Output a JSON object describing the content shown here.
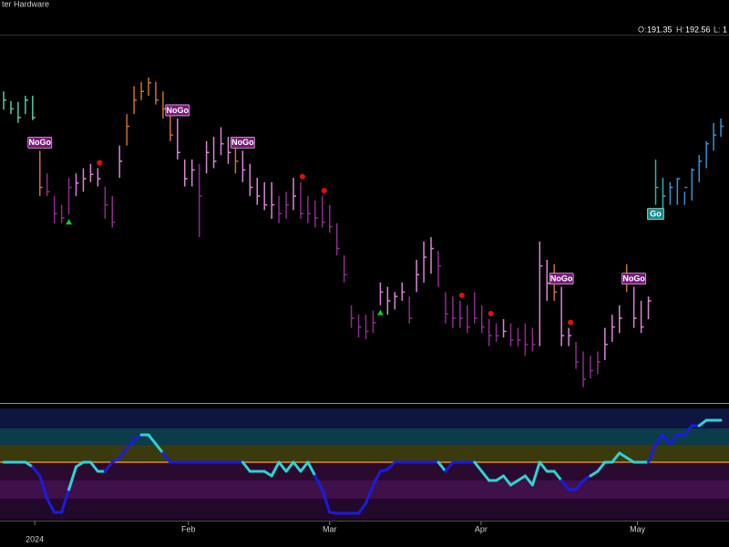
{
  "chart_data": {
    "type": "ohlc",
    "title": "ter Hardware",
    "header": {
      "open_label": "O:",
      "open": 191.35,
      "high_label": "H:",
      "high": 192.56,
      "low_label": "L:",
      "low": "1"
    },
    "ylim": [
      162.5,
      204.3
    ],
    "high": [
      198.0,
      196.9,
      196.8,
      197.5,
      197.5,
      191.2,
      188.6,
      186.0,
      185.0,
      188.1,
      188.6,
      189.2,
      189.7,
      189.2,
      187.1,
      186.0,
      191.8,
      195.4,
      198.6,
      199.1,
      199.6,
      199.1,
      198.0,
      196.5,
      194.9,
      190.2,
      190.2,
      189.7,
      192.3,
      192.8,
      193.9,
      192.8,
      192.3,
      191.2,
      189.7,
      188.1,
      187.6,
      187.6,
      186.0,
      186.5,
      188.1,
      187.6,
      186.0,
      185.5,
      186.0,
      185.0,
      182.9,
      179.2,
      173.5,
      172.4,
      172.4,
      172.9,
      176.1,
      175.6,
      175.0,
      176.1,
      174.5,
      178.7,
      180.8,
      181.3,
      179.7,
      175.0,
      174.5,
      174.0,
      173.5,
      175.0,
      173.5,
      171.9,
      171.4,
      171.9,
      171.4,
      170.9,
      171.4,
      170.9,
      180.8,
      178.7,
      178.2,
      175.6,
      170.9,
      169.3,
      168.2,
      167.7,
      168.2,
      170.9,
      172.4,
      173.5,
      178.2,
      175.6,
      174.0,
      174.5,
      190.2,
      188.1,
      187.6,
      188.1,
      186.5,
      189.2,
      190.7,
      192.3,
      194.4,
      194.9
    ],
    "low": [
      195.9,
      195.4,
      194.4,
      195.4,
      194.7,
      186.0,
      186.0,
      182.9,
      182.9,
      183.9,
      186.0,
      186.5,
      187.6,
      187.1,
      183.4,
      182.4,
      188.1,
      191.8,
      195.4,
      197.0,
      197.5,
      196.5,
      194.9,
      192.3,
      190.2,
      187.1,
      187.1,
      181.3,
      188.6,
      189.2,
      190.7,
      189.7,
      188.6,
      187.6,
      186.0,
      185.0,
      184.4,
      183.4,
      182.9,
      183.4,
      184.4,
      183.4,
      182.9,
      182.4,
      182.4,
      181.8,
      179.2,
      176.1,
      170.9,
      169.8,
      169.6,
      170.3,
      173.5,
      172.4,
      173.0,
      174.0,
      171.4,
      175.0,
      176.1,
      177.1,
      175.6,
      171.4,
      170.9,
      170.9,
      170.3,
      171.4,
      170.3,
      168.8,
      169.3,
      169.8,
      168.8,
      168.8,
      167.7,
      168.2,
      168.8,
      174.0,
      174.0,
      168.8,
      168.8,
      166.2,
      164.1,
      165.1,
      165.6,
      167.2,
      169.3,
      170.3,
      175.0,
      170.9,
      170.3,
      171.9,
      185.0,
      183.4,
      185.0,
      185.0,
      185.0,
      185.5,
      187.6,
      189.2,
      191.2,
      192.8
    ],
    "close": [
      197,
      196,
      195,
      197,
      195,
      187,
      186.5,
      184,
      183.5,
      187,
      187.5,
      188,
      188.5,
      188,
      185,
      183,
      190,
      194,
      197,
      198,
      199,
      197,
      196,
      193,
      191,
      188,
      189,
      186,
      191,
      190,
      192,
      191,
      190,
      189,
      187,
      186,
      185,
      185,
      184,
      185,
      186,
      184,
      184,
      183.5,
      183,
      182.5,
      180,
      177,
      172,
      171,
      170.5,
      171.5,
      175,
      174,
      174.5,
      175,
      172,
      177,
      179,
      180,
      178,
      172.5,
      172,
      172,
      171,
      172,
      171,
      170,
      170,
      170.5,
      169.5,
      169.5,
      169,
      169,
      178,
      176,
      175,
      170,
      170,
      167,
      165,
      166,
      167,
      169,
      171,
      172,
      177,
      172,
      171,
      174,
      187,
      186,
      187,
      188,
      187,
      189,
      190,
      192,
      193,
      194
    ],
    "colors": [
      "#5ec4a6",
      "#5ec4a6",
      "#5ec4a6",
      "#5ec4a6",
      "#5ec4a6",
      "#c8722c",
      "#8c2d8c",
      "#8c2d8c",
      "#8c2d8c",
      "#8c2d8c",
      "#d885d4",
      "#d885d4",
      "#d885d4",
      "#d885d4",
      "#8c2d8c",
      "#8c2d8c",
      "#d885d4",
      "#c8722c",
      "#c8722c",
      "#c8722c",
      "#c8722c",
      "#c8722c",
      "#c8722c",
      "#c8722c",
      "#d885d4",
      "#d885d4",
      "#d885d4",
      "#8c2d8c",
      "#d885d4",
      "#d885d4",
      "#d885d4",
      "#d885d4",
      "#c8722c",
      "#d885d4",
      "#d885d4",
      "#d885d4",
      "#d885d4",
      "#d885d4",
      "#8c2d8c",
      "#8c2d8c",
      "#d885d4",
      "#8c2d8c",
      "#8c2d8c",
      "#8c2d8c",
      "#8c2d8c",
      "#8c2d8c",
      "#8c2d8c",
      "#8c2d8c",
      "#8c2d8c",
      "#8c2d8c",
      "#8c2d8c",
      "#8c2d8c",
      "#d885d4",
      "#d885d4",
      "#d885d4",
      "#d885d4",
      "#8c2d8c",
      "#d885d4",
      "#d885d4",
      "#d885d4",
      "#8c2d8c",
      "#8c2d8c",
      "#8c2d8c",
      "#8c2d8c",
      "#8c2d8c",
      "#8c2d8c",
      "#8c2d8c",
      "#8c2d8c",
      "#8c2d8c",
      "#d885d4",
      "#8c2d8c",
      "#8c2d8c",
      "#8c2d8c",
      "#8c2d8c",
      "#d885d4",
      "#d885d4",
      "#c8722c",
      "#d885d4",
      "#d885d4",
      "#8c2d8c",
      "#8c2d8c",
      "#8c2d8c",
      "#8c2d8c",
      "#d885d4",
      "#d885d4",
      "#d885d4",
      "#c8722c",
      "#d885d4",
      "#d885d4",
      "#d885d4",
      "#2fb3a8",
      "#2fb3a8",
      "#3a90d0",
      "#3a90d0",
      "#3a90d0",
      "#3a90d0",
      "#3a90d0",
      "#3a90d0",
      "#3a90d0",
      "#3a90d0"
    ],
    "signals": [
      {
        "bar": 5,
        "label": "NoGo"
      },
      {
        "bar": 24,
        "label": "NoGo"
      },
      {
        "bar": 33,
        "label": "NoGo"
      },
      {
        "bar": 77,
        "label": "NoGo"
      },
      {
        "bar": 87,
        "label": "NoGo"
      },
      {
        "bar": 90,
        "label": "Go"
      }
    ],
    "nogo_dots": [
      13,
      41,
      44,
      63,
      67,
      78
    ],
    "go_triangles": [
      9,
      52
    ],
    "oscillator": {
      "ylim": [
        -6,
        6
      ],
      "values": [
        0,
        0,
        0,
        0,
        -0.5,
        -1.5,
        -4,
        -5.5,
        -5.5,
        -3,
        -0.5,
        0,
        0,
        -1,
        -1,
        0,
        0.5,
        1.5,
        2.5,
        3,
        3,
        2,
        1,
        0,
        0,
        0,
        0,
        0,
        0,
        0,
        0,
        0,
        0,
        0,
        -1,
        -1,
        -1,
        -1.5,
        0,
        -1,
        0,
        -1,
        0,
        -1.5,
        -3,
        -5.5,
        -5.6,
        -5.6,
        -5.6,
        -5.6,
        -4.5,
        -2.5,
        -1,
        -0.8,
        0,
        0,
        0,
        0,
        0,
        0,
        0,
        -1,
        0,
        0,
        0,
        0,
        -1,
        -2,
        -2,
        -1.5,
        -2.5,
        -2,
        -1.5,
        -2.5,
        0,
        -1,
        -1,
        -2,
        -3,
        -3,
        -2,
        -1.5,
        -1,
        0,
        0,
        1,
        0.5,
        0,
        0,
        0,
        2,
        3,
        2,
        3,
        3,
        4,
        4,
        4.6,
        4.6,
        4.6
      ],
      "colors": [
        "#2ed3d3",
        "#2ed3d3",
        "#2ed3d3",
        "#2ed3d3",
        "#2ed3d3",
        "#1b1be0",
        "#1b1be0",
        "#1b1be0",
        "#1b1be0",
        "#1b1be0",
        "#2ed3d3",
        "#2ed3d3",
        "#2ed3d3",
        "#2ed3d3",
        "#2ed3d3",
        "#1b1be0",
        "#1b1be0",
        "#1b1be0",
        "#1b1be0",
        "#1b1be0",
        "#2ed3d3",
        "#2ed3d3",
        "#2ed3d3",
        "#1b1be0",
        "#1b1be0",
        "#1b1be0",
        "#1b1be0",
        "#1b1be0",
        "#1b1be0",
        "#1b1be0",
        "#1b1be0",
        "#1b1be0",
        "#1b1be0",
        "#1b1be0",
        "#2ed3d3",
        "#2ed3d3",
        "#2ed3d3",
        "#2ed3d3",
        "#2ed3d3",
        "#2ed3d3",
        "#2ed3d3",
        "#2ed3d3",
        "#2ed3d3",
        "#2ed3d3",
        "#1b1be0",
        "#1b1be0",
        "#1b1be0",
        "#1b1be0",
        "#1b1be0",
        "#1b1be0",
        "#1b1be0",
        "#1b1be0",
        "#1b1be0",
        "#1b1be0",
        "#1b1be0",
        "#1b1be0",
        "#1b1be0",
        "#1b1be0",
        "#1b1be0",
        "#1b1be0",
        "#1b1be0",
        "#2ed3d3",
        "#1b1be0",
        "#1b1be0",
        "#1b1be0",
        "#1b1be0",
        "#2ed3d3",
        "#2ed3d3",
        "#2ed3d3",
        "#2ed3d3",
        "#2ed3d3",
        "#2ed3d3",
        "#2ed3d3",
        "#2ed3d3",
        "#2ed3d3",
        "#2ed3d3",
        "#2ed3d3",
        "#2ed3d3",
        "#1b1be0",
        "#1b1be0",
        "#1b1be0",
        "#1b1be0",
        "#2ed3d3",
        "#2ed3d3",
        "#2ed3d3",
        "#2ed3d3",
        "#2ed3d3",
        "#2ed3d3",
        "#2ed3d3",
        "#2ed3d3",
        "#1b1be0",
        "#1b1be0",
        "#1b1be0",
        "#1b1be0",
        "#1b1be0",
        "#1b1be0",
        "#1b1be0",
        "#2ed3d3",
        "#2ed3d3",
        "#2ed3d3"
      ]
    },
    "xticks": [
      {
        "value": 25.5,
        "label": "Feb"
      },
      {
        "value": 45,
        "label": "Mar"
      },
      {
        "value": 65.9,
        "label": "Apr"
      },
      {
        "value": 87.5,
        "label": "May"
      }
    ],
    "year": {
      "value": 4.3,
      "label": "2024"
    }
  }
}
